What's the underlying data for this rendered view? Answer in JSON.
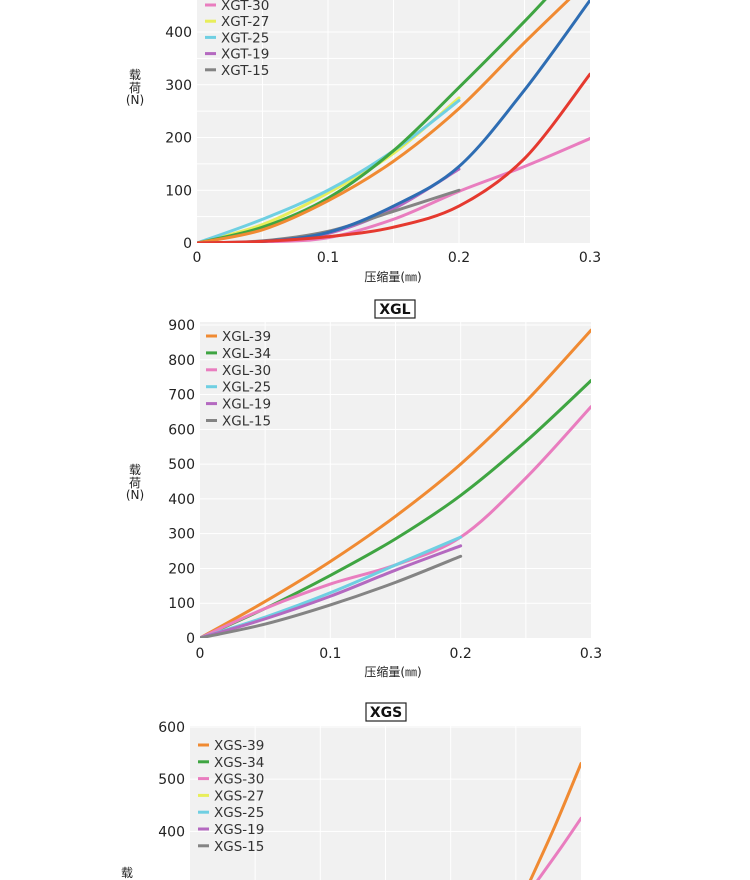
{
  "chart_data": [
    {
      "type": "line",
      "title": "",
      "xlabel": "压缩量(㎜)",
      "ylabel": [
        "载",
        "荷",
        "(N)"
      ],
      "xlim": [
        0,
        0.3
      ],
      "ylim": [
        0,
        400
      ],
      "xticks": [
        "0",
        "0.1",
        "0.2",
        "0.3"
      ],
      "yticks": [
        "0",
        "100",
        "200",
        "300",
        "400"
      ],
      "legend_position": "top-left",
      "grid": true,
      "series": [
        {
          "name": "XGT-30",
          "color": "#e97dbf",
          "x": [
            0,
            0.05,
            0.1,
            0.15,
            0.2,
            0.25,
            0.3
          ],
          "y": [
            0,
            2,
            10,
            45,
            98,
            145,
            198
          ]
        },
        {
          "name": "XGT-27",
          "color": "#e8ee5a",
          "x": [
            0,
            0.05,
            0.1,
            0.15,
            0.2
          ],
          "y": [
            0,
            35,
            95,
            170,
            275
          ]
        },
        {
          "name": "XGT-25",
          "color": "#6fcfe2",
          "x": [
            0,
            0.05,
            0.1,
            0.15,
            0.2
          ],
          "y": [
            0,
            45,
            100,
            175,
            270
          ]
        },
        {
          "name": "XGT-19",
          "color": "#b469c0",
          "x": [
            0,
            0.05,
            0.1,
            0.15,
            0.2
          ],
          "y": [
            0,
            3,
            18,
            65,
            140
          ]
        },
        {
          "name": "XGT-15",
          "color": "#848484",
          "x": [
            0,
            0.05,
            0.1,
            0.15,
            0.2
          ],
          "y": [
            0,
            4,
            22,
            60,
            100
          ]
        },
        {
          "x": [
            0,
            0.05,
            0.1,
            0.15,
            0.2,
            0.25,
            0.28
          ],
          "y": [
            0,
            30,
            85,
            175,
            295,
            420,
            500
          ],
          "color": "#3fa542"
        },
        {
          "x": [
            0,
            0.05,
            0.1,
            0.15,
            0.2,
            0.25,
            0.3
          ],
          "y": [
            0,
            25,
            80,
            155,
            255,
            380,
            500
          ],
          "color": "#f08a32"
        },
        {
          "x": [
            0,
            0.05,
            0.1,
            0.15,
            0.2,
            0.25,
            0.3
          ],
          "y": [
            0,
            3,
            20,
            70,
            145,
            290,
            460
          ],
          "color": "#2e6db3"
        },
        {
          "x": [
            0,
            0.05,
            0.1,
            0.15,
            0.2,
            0.25,
            0.3
          ],
          "y": [
            0,
            3,
            12,
            30,
            70,
            160,
            320
          ],
          "color": "#e5392f"
        }
      ]
    },
    {
      "type": "line",
      "title": "XGL",
      "xlabel": "压缩量(㎜)",
      "ylabel": [
        "载",
        "荷",
        "(N)"
      ],
      "xlim": [
        0,
        0.3
      ],
      "ylim": [
        0,
        900
      ],
      "xticks": [
        "0",
        "0.1",
        "0.2",
        "0.3"
      ],
      "yticks": [
        "0",
        "100",
        "200",
        "300",
        "400",
        "500",
        "600",
        "700",
        "800",
        "900"
      ],
      "legend_position": "top-left",
      "grid": true,
      "series": [
        {
          "name": "XGL-39",
          "color": "#f08a32",
          "x": [
            0,
            0.05,
            0.1,
            0.15,
            0.2,
            0.25,
            0.3
          ],
          "y": [
            0,
            105,
            220,
            350,
            500,
            680,
            885
          ]
        },
        {
          "name": "XGL-34",
          "color": "#3fa542",
          "x": [
            0,
            0.05,
            0.1,
            0.15,
            0.2,
            0.25,
            0.3
          ],
          "y": [
            0,
            85,
            180,
            285,
            410,
            565,
            740
          ]
        },
        {
          "name": "XGL-30",
          "color": "#e97dbf",
          "x": [
            0,
            0.05,
            0.1,
            0.15,
            0.2,
            0.25,
            0.3
          ],
          "y": [
            0,
            85,
            155,
            210,
            290,
            460,
            665
          ]
        },
        {
          "name": "XGL-25",
          "color": "#6fcfe2",
          "x": [
            0,
            0.05,
            0.1,
            0.15,
            0.2
          ],
          "y": [
            0,
            60,
            130,
            210,
            290
          ]
        },
        {
          "name": "XGL-19",
          "color": "#b469c0",
          "x": [
            0,
            0.05,
            0.1,
            0.15,
            0.2
          ],
          "y": [
            0,
            55,
            120,
            195,
            265
          ]
        },
        {
          "name": "XGL-15",
          "color": "#848484",
          "x": [
            0,
            0.05,
            0.1,
            0.15,
            0.2
          ],
          "y": [
            0,
            40,
            95,
            160,
            235
          ]
        }
      ]
    },
    {
      "type": "line",
      "title": "XGS",
      "xlabel": "",
      "ylabel": [
        "载"
      ],
      "xlim": [
        0,
        0.3
      ],
      "ylim": [
        0,
        600
      ],
      "yticks": [
        "300",
        "400",
        "500",
        "600"
      ],
      "legend_position": "top-left",
      "grid": true,
      "series": [
        {
          "name": "XGS-39",
          "color": "#f08a32",
          "x": [
            0.26,
            0.28,
            0.3
          ],
          "y": [
            300,
            410,
            530
          ]
        },
        {
          "name": "XGS-34",
          "color": "#3fa542",
          "x": [],
          "y": []
        },
        {
          "name": "XGS-30",
          "color": "#e97dbf",
          "x": [
            0.265,
            0.285,
            0.3
          ],
          "y": [
            300,
            370,
            425
          ]
        },
        {
          "name": "XGS-27",
          "color": "#e8ee5a",
          "x": [],
          "y": []
        },
        {
          "name": "XGS-25",
          "color": "#6fcfe2",
          "x": [],
          "y": []
        },
        {
          "name": "XGS-19",
          "color": "#b469c0",
          "x": [],
          "y": []
        },
        {
          "name": "XGS-15",
          "color": "#848484",
          "x": [],
          "y": []
        }
      ]
    }
  ]
}
